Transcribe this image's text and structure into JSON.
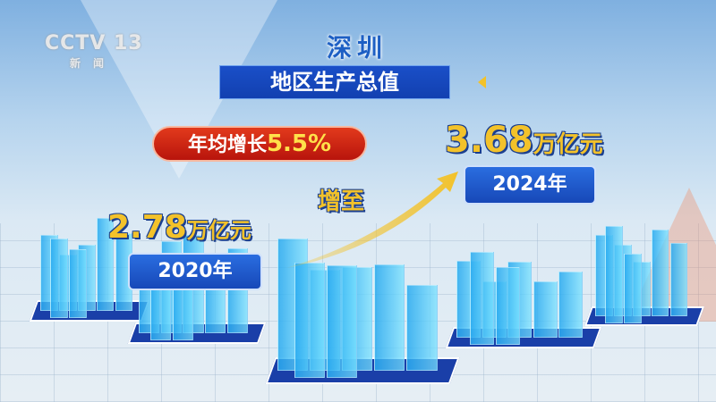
{
  "channel_logo": {
    "name": "CCTV 13",
    "subtitle": "新闻"
  },
  "city": "深圳",
  "banner_title": "地区生产总值",
  "growth": {
    "label": "年均增长",
    "value": "5.5%"
  },
  "connector": "增至",
  "start": {
    "value": "2.78",
    "unit": "万亿元",
    "year": "2020年"
  },
  "end": {
    "value": "3.68",
    "unit": "万亿元",
    "year": "2024年"
  },
  "colors": {
    "banner": "#1a4fc8",
    "growth_pill": "#d42a14",
    "value_text": "#f3c22a",
    "year_box": "#1f5ad0",
    "buildings": "#3ab8f0"
  }
}
